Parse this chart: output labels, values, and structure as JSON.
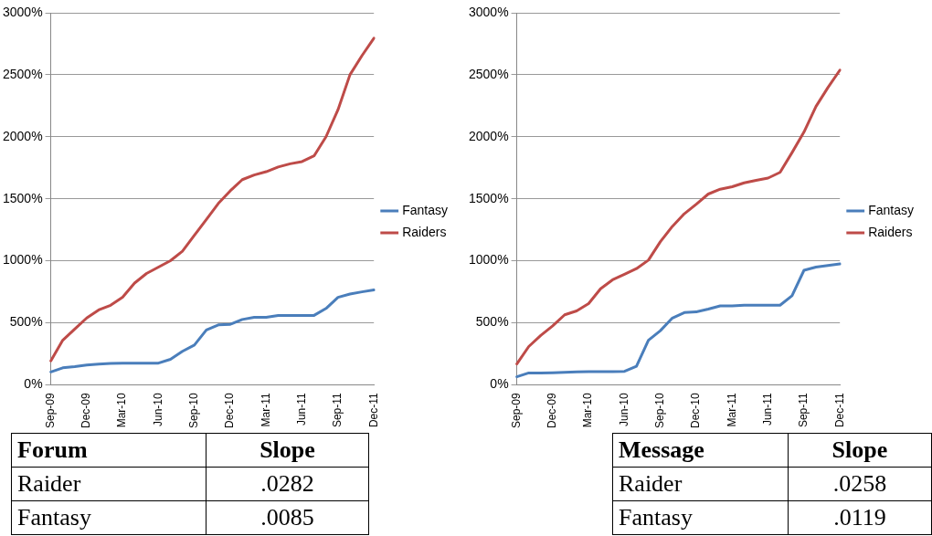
{
  "chart_data": [
    {
      "type": "line",
      "categories": [
        "Sep-09",
        null,
        null,
        "Dec-09",
        null,
        null,
        "Mar-10",
        null,
        null,
        "Jun-10",
        null,
        null,
        "Sep-10",
        null,
        null,
        "Dec-10",
        null,
        null,
        "Mar-11",
        null,
        null,
        "Jun-11",
        null,
        null,
        "Sep-11",
        null,
        null,
        "Dec-11"
      ],
      "series": [
        {
          "name": "Fantasy",
          "color": "#4a7ebb",
          "values": [
            103,
            136,
            146,
            159,
            167,
            172,
            174,
            174,
            174,
            174,
            205,
            269,
            320,
            441,
            482,
            487,
            526,
            544,
            544,
            559,
            559,
            559,
            559,
            615,
            705,
            731,
            749,
            764
          ]
        },
        {
          "name": "Raiders",
          "color": "#be4b48",
          "values": [
            192,
            359,
            449,
            538,
            603,
            641,
            705,
            820,
            897,
            949,
            1000,
            1077,
            1205,
            1333,
            1462,
            1564,
            1654,
            1692,
            1718,
            1756,
            1782,
            1800,
            1846,
            2000,
            2218,
            2500,
            2654,
            2795
          ]
        }
      ],
      "ylim": [
        0,
        3000
      ],
      "yticks": [
        {
          "value": 0,
          "label": "0%"
        },
        {
          "value": 500,
          "label": "500%"
        },
        {
          "value": 1000,
          "label": "1000%"
        },
        {
          "value": 1500,
          "label": "1500%"
        },
        {
          "value": 2000,
          "label": "2000%"
        },
        {
          "value": 2500,
          "label": "2500%"
        },
        {
          "value": 3000,
          "label": "3000%"
        }
      ],
      "grid": "y",
      "legend": "right",
      "marker": "none",
      "line_style": "solid",
      "annotations": [
        "Forum",
        "Slope",
        "Raider",
        ".0282",
        "Fantasy",
        ".0085"
      ]
    },
    {
      "type": "line",
      "categories": [
        "Sep-09",
        null,
        null,
        "Dec-09",
        null,
        null,
        "Mar-10",
        null,
        null,
        "Jun-10",
        null,
        null,
        "Sep-10",
        null,
        null,
        "Dec-10",
        null,
        null,
        "Mar-11",
        null,
        null,
        "Jun-11",
        null,
        null,
        "Sep-11",
        null,
        null,
        "Dec-11"
      ],
      "series": [
        {
          "name": "Fantasy",
          "color": "#4a7ebb",
          "values": [
            64,
            95,
            95,
            97,
            100,
            103,
            105,
            105,
            105,
            108,
            149,
            359,
            436,
            538,
            582,
            587,
            610,
            636,
            636,
            641,
            641,
            641,
            641,
            718,
            923,
            949,
            962,
            974
          ]
        },
        {
          "name": "Raiders",
          "color": "#be4b48",
          "values": [
            167,
            308,
            397,
            474,
            564,
            595,
            654,
            774,
            846,
            890,
            936,
            1005,
            1154,
            1277,
            1379,
            1456,
            1538,
            1577,
            1597,
            1628,
            1649,
            1667,
            1713,
            1872,
            2038,
            2244,
            2397,
            2538
          ]
        }
      ],
      "ylim": [
        0,
        3000
      ],
      "yticks": [
        {
          "value": 0,
          "label": "0%"
        },
        {
          "value": 500,
          "label": "500%"
        },
        {
          "value": 1000,
          "label": "1000%"
        },
        {
          "value": 1500,
          "label": "1500%"
        },
        {
          "value": 2000,
          "label": "2000%"
        },
        {
          "value": 2500,
          "label": "2500%"
        },
        {
          "value": 3000,
          "label": "3000%"
        }
      ],
      "grid": "y",
      "legend": "right",
      "marker": "none",
      "line_style": "solid",
      "annotations": [
        "Message",
        "Slope",
        "Raider",
        ".0258",
        "Fantasy",
        ".0119"
      ]
    }
  ]
}
